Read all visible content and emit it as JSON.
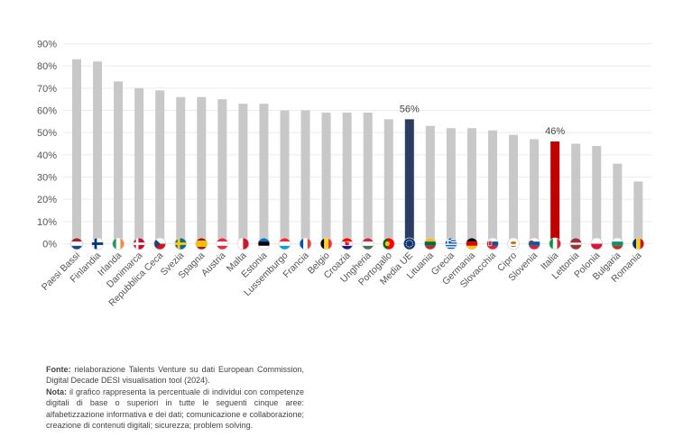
{
  "chart_data": {
    "type": "bar",
    "title": "",
    "xlabel": "",
    "ylabel": "",
    "ylim": [
      0,
      90
    ],
    "yticks": [
      "0%",
      "10%",
      "20%",
      "30%",
      "40%",
      "50%",
      "60%",
      "70%",
      "80%",
      "90%"
    ],
    "grid": true,
    "categories": [
      "Paesi Bassi",
      "Finlandia",
      "Irlanda",
      "Danimarca",
      "Repubblica Ceca",
      "Svezia",
      "Spagna",
      "Austria",
      "Malta",
      "Estonia",
      "Lussemburgo",
      "Francia",
      "Belgio",
      "Croazia",
      "Ungheria",
      "Portogallo",
      "Media UE",
      "Lituania",
      "Grecia",
      "Germania",
      "Slovacchia",
      "Cipro",
      "Slovenia",
      "Italia",
      "Lettonia",
      "Polonia",
      "Bulgaria",
      "Romania"
    ],
    "values": [
      83,
      82,
      73,
      70,
      69,
      66,
      66,
      65,
      63,
      63,
      60,
      60,
      59,
      59,
      59,
      56,
      56,
      53,
      52,
      52,
      51,
      49,
      47,
      46,
      45,
      44,
      36,
      28
    ],
    "colors": {
      "default": "#c8c8c8",
      "Media UE": "#2b3d63",
      "Italia": "#c00000"
    },
    "annotations": [
      {
        "category": "Media UE",
        "text": "56%"
      },
      {
        "category": "Italia",
        "text": "46%"
      }
    ],
    "flag_icons": [
      "netherlands-flag-icon",
      "finland-flag-icon",
      "ireland-flag-icon",
      "denmark-flag-icon",
      "czech-republic-flag-icon",
      "sweden-flag-icon",
      "spain-flag-icon",
      "austria-flag-icon",
      "malta-flag-icon",
      "estonia-flag-icon",
      "luxembourg-flag-icon",
      "france-flag-icon",
      "belgium-flag-icon",
      "croatia-flag-icon",
      "hungary-flag-icon",
      "portugal-flag-icon",
      "eu-flag-icon",
      "lithuania-flag-icon",
      "greece-flag-icon",
      "germany-flag-icon",
      "slovakia-flag-icon",
      "cyprus-flag-icon",
      "slovenia-flag-icon",
      "italy-flag-icon",
      "latvia-flag-icon",
      "poland-flag-icon",
      "bulgaria-flag-icon",
      "romania-flag-icon"
    ]
  },
  "notes": {
    "source_label": "Fonte:",
    "source_text": " rielaborazione Talents Venture su dati European Commission, Digital Decade DESI visualisation tool (2024).",
    "note_label": "Nota:",
    "note_text": " il grafico rappresenta la percentuale di individui con competenze digitali di base o superiori in tutte le seguenti cinque aree: alfabetizzazione informativa e dei dati; comunicazione e collaborazione; creazione di contenuti digitali; sicurezza; problem solving."
  }
}
